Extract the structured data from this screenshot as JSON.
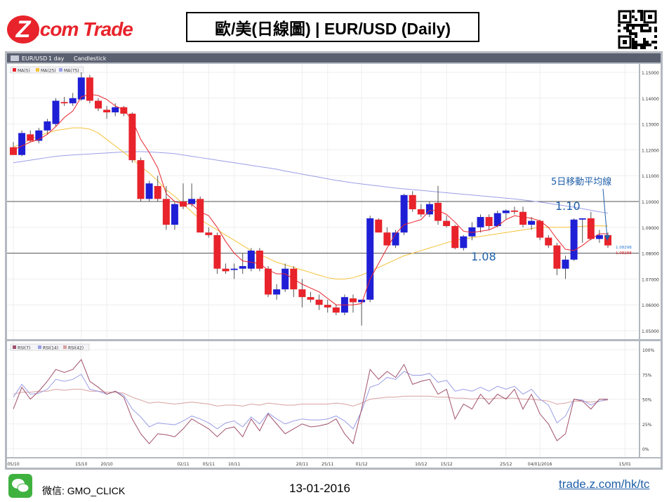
{
  "header": {
    "logo_z": "Z",
    "logo_text": ".com Trade",
    "title": "歐/美(日線圖) | EUR/USD (Daily)"
  },
  "footer": {
    "wechat": "微信: GMO_CLICK",
    "date": "13-01-2016",
    "site": "trade.z.com/hk/tc"
  },
  "chart_data": {
    "type": "candlestick",
    "toolbar": [
      "EUR/USD",
      "1 day",
      "Candlestick"
    ],
    "legend": [
      "MA(5)",
      "MA(25)",
      "MA(75)"
    ],
    "rsi_legend": [
      "RSI(7)",
      "RSI(14)",
      "RSI(42)"
    ],
    "ylim": [
      1.05,
      1.15
    ],
    "y_ticks": [
      "1.15000",
      "1.14000",
      "1.13000",
      "1.12000",
      "1.11000",
      "1.10000",
      "1.09000",
      "1.08000",
      "1.07000",
      "1.06000",
      "1.05000"
    ],
    "rsi_ticks": [
      "100%",
      "75%",
      "50%",
      "25%",
      "0%"
    ],
    "x_labels": [
      {
        "i": 0,
        "label": "05/10"
      },
      {
        "i": 8,
        "label": "15/10"
      },
      {
        "i": 11,
        "label": "20/10"
      },
      {
        "i": 20,
        "label": "02/11"
      },
      {
        "i": 23,
        "label": "05/11"
      },
      {
        "i": 26,
        "label": "10/11"
      },
      {
        "i": 34,
        "label": "20/11"
      },
      {
        "i": 37,
        "label": "25/11"
      },
      {
        "i": 41,
        "label": "01/12"
      },
      {
        "i": 48,
        "label": "10/12"
      },
      {
        "i": 51,
        "label": "15/12"
      },
      {
        "i": 58,
        "label": "25/12"
      },
      {
        "i": 62,
        "label": "04/01/2016"
      },
      {
        "i": 72,
        "label": "15/01"
      }
    ],
    "candles": [
      [
        1.121,
        1.123,
        1.118,
        1.118
      ],
      [
        1.118,
        1.1275,
        1.1175,
        1.1265
      ],
      [
        1.126,
        1.1275,
        1.123,
        1.1235
      ],
      [
        1.1235,
        1.1285,
        1.1225,
        1.1275
      ],
      [
        1.1275,
        1.132,
        1.126,
        1.131
      ],
      [
        1.13,
        1.14,
        1.129,
        1.139
      ],
      [
        1.1385,
        1.1405,
        1.137,
        1.138
      ],
      [
        1.138,
        1.142,
        1.137,
        1.14
      ],
      [
        1.1395,
        1.15,
        1.139,
        1.148
      ],
      [
        1.148,
        1.149,
        1.138,
        1.139
      ],
      [
        1.139,
        1.14,
        1.135,
        1.136
      ],
      [
        1.1355,
        1.137,
        1.132,
        1.1345
      ],
      [
        1.1345,
        1.138,
        1.133,
        1.1365
      ],
      [
        1.1365,
        1.137,
        1.133,
        1.134
      ],
      [
        1.134,
        1.1345,
        1.115,
        1.116
      ],
      [
        1.116,
        1.117,
        1.1,
        1.101
      ],
      [
        1.101,
        1.108,
        1.1,
        1.107
      ],
      [
        1.106,
        1.11,
        1.1,
        1.101
      ],
      [
        1.101,
        1.106,
        1.089,
        1.091
      ],
      [
        1.091,
        1.1,
        1.089,
        1.099
      ],
      [
        1.1,
        1.107,
        1.097,
        1.098
      ],
      [
        1.099,
        1.107,
        1.098,
        1.101
      ],
      [
        1.101,
        1.102,
        1.088,
        1.088
      ],
      [
        1.088,
        1.09,
        1.086,
        1.087
      ],
      [
        1.087,
        1.088,
        1.072,
        1.074
      ],
      [
        1.074,
        1.076,
        1.072,
        1.073
      ],
      [
        1.0735,
        1.076,
        1.07,
        1.074
      ],
      [
        1.074,
        1.08,
        1.072,
        1.075
      ],
      [
        1.074,
        1.082,
        1.073,
        1.081
      ],
      [
        1.081,
        1.082,
        1.073,
        1.074
      ],
      [
        1.074,
        1.075,
        1.063,
        1.064
      ],
      [
        1.064,
        1.068,
        1.062,
        1.066
      ],
      [
        1.066,
        1.076,
        1.065,
        1.074
      ],
      [
        1.074,
        1.075,
        1.063,
        1.066
      ],
      [
        1.066,
        1.07,
        1.059,
        1.063
      ],
      [
        1.063,
        1.065,
        1.061,
        1.062
      ],
      [
        1.062,
        1.064,
        1.058,
        1.06
      ],
      [
        1.06,
        1.062,
        1.057,
        1.059
      ],
      [
        1.059,
        1.06,
        1.056,
        1.057
      ],
      [
        1.057,
        1.064,
        1.056,
        1.063
      ],
      [
        1.0625,
        1.064,
        1.057,
        1.061
      ],
      [
        1.061,
        1.062,
        1.052,
        1.062
      ],
      [
        1.062,
        1.0945,
        1.061,
        1.0935
      ],
      [
        1.093,
        1.0935,
        1.088,
        1.088
      ],
      [
        1.088,
        1.09,
        1.083,
        1.083
      ],
      [
        1.083,
        1.089,
        1.082,
        1.088
      ],
      [
        1.088,
        1.103,
        1.087,
        1.1025
      ],
      [
        1.1025,
        1.104,
        1.096,
        1.097
      ],
      [
        1.097,
        1.099,
        1.094,
        1.095
      ],
      [
        1.095,
        1.1,
        1.094,
        1.099
      ],
      [
        1.0995,
        1.106,
        1.091,
        1.0925
      ],
      [
        1.0925,
        1.0945,
        1.09,
        1.0905
      ],
      [
        1.0905,
        1.091,
        1.0815,
        1.082
      ],
      [
        1.082,
        1.087,
        1.081,
        1.0865
      ],
      [
        1.0865,
        1.092,
        1.085,
        1.09
      ],
      [
        1.09,
        1.095,
        1.088,
        1.094
      ],
      [
        1.094,
        1.095,
        1.089,
        1.0905
      ],
      [
        1.0905,
        1.0965,
        1.09,
        1.0955
      ],
      [
        1.0955,
        1.097,
        1.093,
        1.0965
      ],
      [
        1.0965,
        1.098,
        1.095,
        1.096
      ],
      [
        1.096,
        1.098,
        1.09,
        1.091
      ],
      [
        1.091,
        1.094,
        1.089,
        1.0925
      ],
      [
        1.0925,
        1.093,
        1.085,
        1.086
      ],
      [
        1.086,
        1.087,
        1.082,
        1.083
      ],
      [
        1.083,
        1.084,
        1.0715,
        1.074
      ],
      [
        1.074,
        1.079,
        1.07,
        1.0775
      ],
      [
        1.0775,
        1.0935,
        1.077,
        1.093
      ],
      [
        1.093,
        1.0935,
        1.084,
        1.0935
      ],
      [
        1.0935,
        1.096,
        1.085,
        1.0855
      ],
      [
        1.0855,
        1.089,
        1.084,
        1.087
      ],
      [
        1.087,
        1.088,
        1.082,
        1.083
      ]
    ],
    "ma5": [
      1.12,
      1.1215,
      1.123,
      1.124,
      1.126,
      1.129,
      1.1325,
      1.135,
      1.1405,
      1.1415,
      1.141,
      1.1395,
      1.137,
      1.1355,
      1.1315,
      1.124,
      1.119,
      1.113,
      1.103,
      1.1,
      1.099,
      1.099,
      1.096,
      1.0945,
      1.09,
      1.0845,
      1.08,
      1.077,
      1.0765,
      1.076,
      1.0735,
      1.072,
      1.072,
      1.07,
      1.068,
      1.0665,
      1.065,
      1.0625,
      1.06,
      1.06,
      1.06,
      1.0605,
      1.07,
      1.076,
      1.082,
      1.0875,
      1.091,
      1.092,
      1.093,
      1.0965,
      1.0965,
      1.095,
      1.092,
      1.0885,
      1.088,
      1.0885,
      1.089,
      1.0905,
      1.093,
      1.0945,
      1.094,
      1.0935,
      1.0925,
      1.09,
      1.0855,
      1.0815,
      1.081,
      1.083,
      1.0855,
      1.0875,
      1.0875
    ],
    "ma25": [
      1.121,
      1.1225,
      1.124,
      1.1255,
      1.1265,
      1.1275,
      1.128,
      1.1285,
      1.1285,
      1.128,
      1.1265,
      1.124,
      1.1215,
      1.119,
      1.1165,
      1.1135,
      1.111,
      1.108,
      1.1045,
      1.102,
      1.099,
      1.096,
      1.093,
      1.091,
      1.089,
      1.087,
      1.085,
      1.083,
      1.081,
      1.0795,
      1.078,
      1.0765,
      1.0755,
      1.0745,
      1.0735,
      1.0725,
      1.0715,
      1.0705,
      1.07,
      1.07,
      1.0705,
      1.0715,
      1.073,
      1.0745,
      1.076,
      1.0775,
      1.079,
      1.08,
      1.081,
      1.082,
      1.083,
      1.084,
      1.085,
      1.0855,
      1.086,
      1.0865,
      1.087,
      1.0875,
      1.088,
      1.0885,
      1.089,
      1.0895,
      1.09,
      1.09,
      1.09,
      1.09,
      1.0902,
      1.0904,
      1.0906,
      1.0906,
      1.0905
    ],
    "ma75": [
      1.115,
      1.1155,
      1.116,
      1.1165,
      1.117,
      1.1175,
      1.1178,
      1.118,
      1.1182,
      1.1184,
      1.1186,
      1.1188,
      1.119,
      1.1192,
      1.1193,
      1.1193,
      1.1192,
      1.119,
      1.1188,
      1.1185,
      1.118,
      1.1175,
      1.117,
      1.1165,
      1.116,
      1.1155,
      1.115,
      1.1145,
      1.114,
      1.1135,
      1.113,
      1.1125,
      1.1118,
      1.1112,
      1.1106,
      1.11,
      1.1094,
      1.1088,
      1.1082,
      1.1077,
      1.1072,
      1.1068,
      1.1064,
      1.106,
      1.1056,
      1.1052,
      1.1049,
      1.1046,
      1.1043,
      1.104,
      1.1037,
      1.1034,
      1.1031,
      1.1028,
      1.1025,
      1.1022,
      1.1019,
      1.1016,
      1.1013,
      1.101,
      1.1006,
      1.1002,
      1.0998,
      1.0993,
      1.0988,
      1.0983,
      1.0978,
      1.0972,
      1.0966,
      1.096,
      1.0955
    ],
    "rsi7": [
      40,
      62,
      50,
      58,
      68,
      80,
      77,
      80,
      90,
      68,
      62,
      55,
      58,
      52,
      30,
      15,
      5,
      15,
      14,
      12,
      20,
      30,
      25,
      20,
      12,
      20,
      22,
      12,
      30,
      18,
      35,
      25,
      15,
      20,
      25,
      22,
      23,
      25,
      30,
      15,
      5,
      40,
      80,
      70,
      78,
      72,
      85,
      65,
      68,
      70,
      55,
      60,
      30,
      45,
      40,
      55,
      45,
      55,
      50,
      60,
      40,
      55,
      35,
      25,
      8,
      15,
      50,
      48,
      40,
      50,
      50
    ],
    "rsi14": [
      52,
      65,
      55,
      56,
      60,
      70,
      68,
      70,
      75,
      60,
      58,
      55,
      58,
      54,
      40,
      32,
      22,
      26,
      25,
      24,
      28,
      33,
      30,
      26,
      20,
      26,
      28,
      22,
      32,
      25,
      36,
      30,
      25,
      28,
      30,
      29,
      29,
      30,
      33,
      28,
      20,
      38,
      62,
      65,
      72,
      70,
      78,
      74,
      74,
      76,
      67,
      69,
      58,
      60,
      58,
      62,
      58,
      63,
      60,
      63,
      55,
      60,
      50,
      44,
      26,
      33,
      50,
      49,
      44,
      48,
      50
    ],
    "rsi42": [
      55,
      57,
      57,
      58,
      58,
      60,
      59,
      60,
      60,
      58,
      58,
      57,
      57,
      56,
      52,
      49,
      46,
      47,
      46,
      45,
      46,
      47,
      46,
      45,
      43,
      44,
      44,
      43,
      45,
      44,
      46,
      45,
      44,
      44,
      45,
      45,
      45,
      45,
      46,
      45,
      43,
      46,
      50,
      51,
      52,
      52,
      53,
      53,
      53,
      53,
      52,
      52,
      51,
      51,
      50,
      51,
      50,
      51,
      51,
      51,
      50,
      50,
      49,
      48,
      45,
      46,
      48,
      48,
      47,
      48,
      49
    ],
    "annotations": {
      "ma_label": "5日移動平均線",
      "level_high": "1.10",
      "level_low": "1.08",
      "price_blue": "1.08298",
      "price_red": "1.08288",
      "hline_high": 1.1,
      "hline_low": 1.08
    },
    "colors": {
      "up": "#1f1fd6",
      "down": "#e8232b",
      "ma5": "#e8232b",
      "ma25": "#f5c23a",
      "ma75": "#9a9ee6",
      "rsi7": "#a0506a",
      "rsi14": "#9a9ee6",
      "rsi42": "#d9a0a0"
    }
  }
}
